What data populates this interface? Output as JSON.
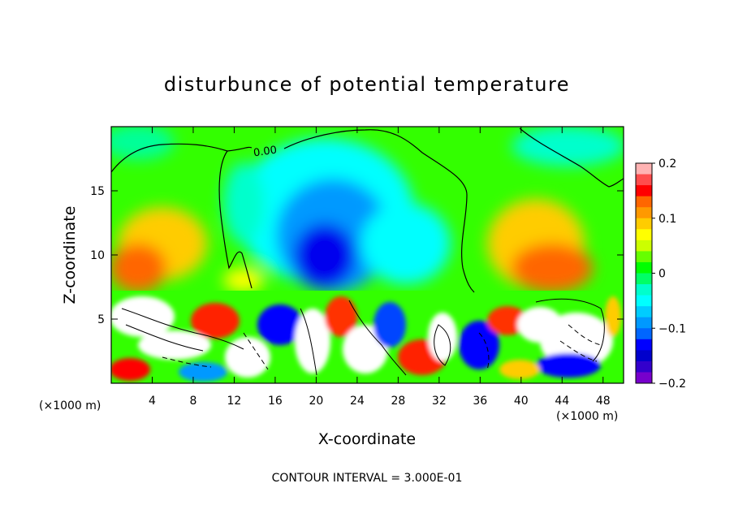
{
  "chart_data": {
    "type": "heatmap",
    "title": "disturbunce of potential temperature",
    "xlabel": "X-coordinate",
    "ylabel": "Z-coordinate",
    "x_unit": "(×1000 m)",
    "xlim": [
      0,
      50
    ],
    "ylim": [
      0,
      20
    ],
    "x_ticks": [
      4,
      8,
      12,
      16,
      20,
      24,
      28,
      32,
      36,
      40,
      44,
      48
    ],
    "y_ticks": [
      5,
      10,
      15
    ],
    "colorbar": {
      "range": [
        -0.2,
        0.2
      ],
      "tick_values": [
        0.2,
        0.1,
        0,
        -0.1,
        -0.2
      ],
      "tick_labels": [
        "0.2",
        "0.1",
        "0",
        "−0.1",
        "−0.2"
      ],
      "colors": [
        "#ffb3b3",
        "#ff4d4d",
        "#ff0000",
        "#ff6600",
        "#ff9900",
        "#ffcc00",
        "#ffff00",
        "#ccff00",
        "#66ff00",
        "#00ff00",
        "#00ff66",
        "#00ffcc",
        "#00ffff",
        "#00ccff",
        "#0099ff",
        "#0066ff",
        "#0000ff",
        "#0000cc",
        "#3300cc",
        "#7700cc"
      ]
    },
    "contour_label": "0.00",
    "footer": "CONTOUR INTERVAL = 3.000E-01",
    "grid": false,
    "legend_placement": "right"
  }
}
